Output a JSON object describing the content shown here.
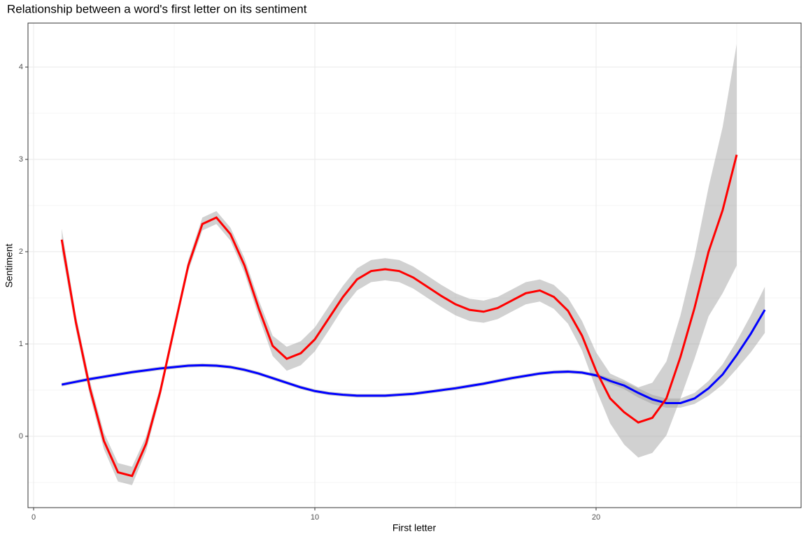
{
  "chart_data": {
    "type": "line",
    "title": "Relationship between a word's first letter on its sentiment",
    "x_label": "First letter",
    "y_label": "Sentiment",
    "xlim": [
      -0.2,
      27.29
    ],
    "ylim": [
      -0.773,
      4.477
    ],
    "xticks": [
      0,
      10,
      20
    ],
    "yticks": [
      0,
      1,
      2,
      3,
      4
    ],
    "xminor": [
      5,
      15,
      25
    ],
    "yminor": [
      -0.5,
      0.5,
      1.5,
      2.5,
      3.5
    ],
    "grid": true,
    "band_color": "#999999",
    "series": [
      {
        "name": "red",
        "color": "#ff0000",
        "x": [
          1,
          1.5,
          2,
          2.5,
          3,
          3.5,
          4,
          4.5,
          5,
          5.5,
          6,
          6.5,
          7,
          7.5,
          8,
          8.5,
          9,
          9.5,
          10,
          10.5,
          11,
          11.5,
          12,
          12.5,
          13,
          13.5,
          14,
          14.5,
          15,
          15.5,
          16,
          16.5,
          17,
          17.5,
          18,
          18.5,
          19,
          19.5,
          20,
          20.5,
          21,
          21.5,
          22,
          22.5,
          23,
          23.5,
          24,
          24.5,
          25
        ],
        "values": [
          2.13,
          1.24,
          0.52,
          -0.05,
          -0.39,
          -0.43,
          -0.08,
          0.48,
          1.17,
          1.85,
          2.3,
          2.37,
          2.19,
          1.85,
          1.39,
          0.98,
          0.84,
          0.9,
          1.05,
          1.28,
          1.51,
          1.7,
          1.79,
          1.81,
          1.79,
          1.72,
          1.62,
          1.52,
          1.43,
          1.37,
          1.35,
          1.39,
          1.47,
          1.55,
          1.58,
          1.51,
          1.36,
          1.09,
          0.71,
          0.41,
          0.26,
          0.15,
          0.2,
          0.41,
          0.86,
          1.39,
          2.0,
          2.45,
          3.05
        ],
        "lower": [
          2.01,
          1.16,
          0.44,
          -0.14,
          -0.49,
          -0.53,
          -0.16,
          0.42,
          1.11,
          1.79,
          2.23,
          2.3,
          2.12,
          1.77,
          1.3,
          0.87,
          0.71,
          0.77,
          0.92,
          1.15,
          1.39,
          1.58,
          1.67,
          1.69,
          1.67,
          1.6,
          1.5,
          1.4,
          1.31,
          1.25,
          1.23,
          1.27,
          1.35,
          1.43,
          1.46,
          1.38,
          1.22,
          0.93,
          0.51,
          0.14,
          -0.09,
          -0.23,
          -0.18,
          0.01,
          0.41,
          0.84,
          1.3,
          1.55,
          1.85
        ],
        "upper": [
          2.25,
          1.32,
          0.6,
          0.04,
          -0.29,
          -0.33,
          0.0,
          0.54,
          1.23,
          1.91,
          2.37,
          2.44,
          2.26,
          1.93,
          1.48,
          1.09,
          0.97,
          1.03,
          1.18,
          1.41,
          1.63,
          1.82,
          1.91,
          1.93,
          1.91,
          1.84,
          1.74,
          1.64,
          1.55,
          1.49,
          1.47,
          1.51,
          1.59,
          1.67,
          1.7,
          1.64,
          1.5,
          1.25,
          0.91,
          0.68,
          0.61,
          0.53,
          0.58,
          0.81,
          1.31,
          1.94,
          2.7,
          3.35,
          4.25
        ]
      },
      {
        "name": "blue",
        "color": "#0000ff",
        "x": [
          1,
          1.5,
          2,
          2.5,
          3,
          3.5,
          4,
          4.5,
          5,
          5.5,
          6,
          6.5,
          7,
          7.5,
          8,
          8.5,
          9,
          9.5,
          10,
          10.5,
          11,
          11.5,
          12,
          12.5,
          13,
          13.5,
          14,
          14.5,
          15,
          15.5,
          16,
          16.5,
          17,
          17.5,
          18,
          18.5,
          19,
          19.5,
          20,
          20.5,
          21,
          21.5,
          22,
          22.5,
          23,
          23.5,
          24,
          24.5,
          25,
          25.5,
          26
        ],
        "values": [
          0.56,
          0.59,
          0.62,
          0.645,
          0.67,
          0.695,
          0.715,
          0.735,
          0.75,
          0.765,
          0.77,
          0.765,
          0.75,
          0.72,
          0.68,
          0.63,
          0.58,
          0.53,
          0.49,
          0.465,
          0.45,
          0.44,
          0.44,
          0.44,
          0.45,
          0.46,
          0.48,
          0.5,
          0.52,
          0.545,
          0.57,
          0.6,
          0.63,
          0.655,
          0.68,
          0.695,
          0.7,
          0.69,
          0.66,
          0.6,
          0.55,
          0.47,
          0.4,
          0.36,
          0.36,
          0.41,
          0.52,
          0.67,
          0.88,
          1.11,
          1.37
        ],
        "lower": [
          0.54,
          0.57,
          0.6,
          0.625,
          0.65,
          0.675,
          0.695,
          0.715,
          0.73,
          0.745,
          0.75,
          0.745,
          0.73,
          0.7,
          0.66,
          0.61,
          0.56,
          0.51,
          0.47,
          0.445,
          0.43,
          0.42,
          0.42,
          0.42,
          0.43,
          0.44,
          0.46,
          0.48,
          0.5,
          0.525,
          0.55,
          0.58,
          0.61,
          0.635,
          0.66,
          0.675,
          0.68,
          0.67,
          0.64,
          0.57,
          0.51,
          0.42,
          0.35,
          0.31,
          0.31,
          0.35,
          0.44,
          0.56,
          0.73,
          0.91,
          1.12
        ],
        "upper": [
          0.58,
          0.61,
          0.64,
          0.665,
          0.69,
          0.715,
          0.735,
          0.755,
          0.77,
          0.785,
          0.79,
          0.785,
          0.77,
          0.74,
          0.7,
          0.65,
          0.6,
          0.55,
          0.51,
          0.485,
          0.47,
          0.46,
          0.46,
          0.46,
          0.47,
          0.48,
          0.5,
          0.52,
          0.54,
          0.565,
          0.59,
          0.62,
          0.65,
          0.675,
          0.7,
          0.715,
          0.72,
          0.71,
          0.68,
          0.63,
          0.59,
          0.52,
          0.45,
          0.41,
          0.41,
          0.47,
          0.6,
          0.78,
          1.03,
          1.31,
          1.62
        ]
      }
    ]
  }
}
